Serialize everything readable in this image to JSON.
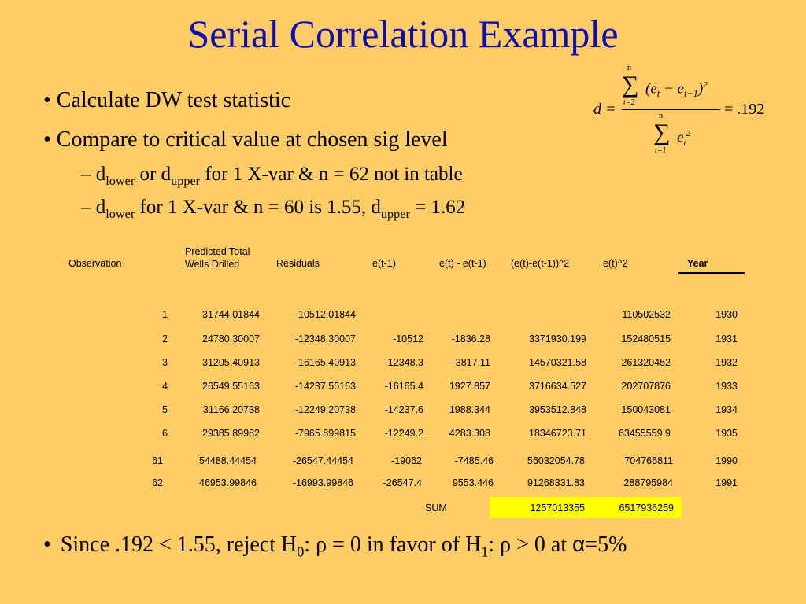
{
  "title": "Serial Correlation Example",
  "bullets": [
    {
      "text": "• Calculate DW test statistic"
    },
    {
      "text": "• Compare to critical value at chosen sig level"
    }
  ],
  "sub_bullets": [
    {
      "dash": "– d",
      "sub1": "lower",
      "mid": " or d",
      "sub2": "upper",
      "rest": " for 1 X-var & n = 62 not in table"
    },
    {
      "dash": "– d",
      "sub1": "lower",
      "mid": " for 1 X-var & n = 60 is 1.55,  d",
      "sub2": "upper",
      "rest": " = 1.62"
    }
  ],
  "formula": {
    "lhs": "d =",
    "num_sum_top": "n",
    "num_sum_bottom": "t=2",
    "numerator": "(e",
    "num_t": "t",
    "minus": " − e",
    "num_t1": "t−1",
    "num_close": ")",
    "num_exp": "2",
    "den_sum_top": "n",
    "den_sum_bottom": "t=1",
    "denominator": "e",
    "den_t": "t",
    "den_exp": "2",
    "result": "= .192"
  },
  "table": {
    "headers": [
      "Observation",
      "Predicted Total\nWells Drilled",
      "Residuals",
      "e(t-1)",
      "e(t) - e(t-1)",
      "(e(t)-e(t-1))^2",
      "e(t)^2",
      "Year"
    ],
    "header_pred_line1": "Predicted Total",
    "header_pred_line2": "Wells Drilled",
    "rows": [
      [
        "1",
        "31744.01844",
        "-10512.01844",
        "",
        "",
        "",
        "110502532",
        "1930"
      ],
      [
        "2",
        "24780.30007",
        "-12348.30007",
        "-10512",
        "-1836.28",
        "3371930.199",
        "152480515",
        "1931"
      ],
      [
        "3",
        "31205.40913",
        "-16165.40913",
        "-12348.3",
        "-3817.11",
        "14570321.58",
        "261320452",
        "1932"
      ],
      [
        "4",
        "26549.55163",
        "-14237.55163",
        "-16165.4",
        "1927.857",
        "3716634.527",
        "202707876",
        "1933"
      ],
      [
        "5",
        "31166.20738",
        "-12249.20738",
        "-14237.6",
        "1988.344",
        "3953512.848",
        "150043081",
        "1934"
      ],
      [
        "6",
        "29385.89982",
        "-7965.899815",
        "-12249.2",
        "4283.308",
        "18346723.71",
        "63455559.9",
        "1935"
      ],
      [
        "61",
        "54488.44454",
        "-26547.44454",
        "-19062",
        "-7485.46",
        "56032054.78",
        "704766811",
        "1990"
      ],
      [
        "62",
        "46953.99846",
        "-16993.99846",
        "-26547.4",
        "9553.446",
        "91268331.83",
        "288795984",
        "1991"
      ]
    ],
    "sum_label": "SUM",
    "sum_values": [
      "1257013355",
      "6517936259"
    ],
    "highlight_color": "#FFFF00"
  },
  "conclusion": {
    "a": "Since .192 < 1.55, reject H",
    "sub0": "0",
    "b": ": ρ = 0 in favor of H",
    "sub1": "1",
    "c": ": ρ > 0 at ",
    "alpha": "α",
    "d": "=5%"
  }
}
